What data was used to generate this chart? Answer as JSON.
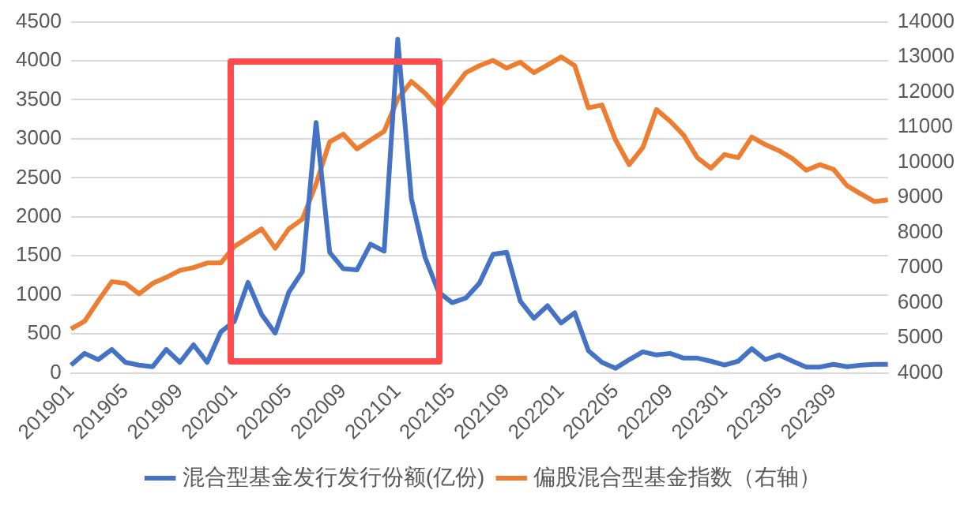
{
  "chart_data": {
    "type": "line",
    "categories": [
      "201901",
      null,
      null,
      null,
      "201905",
      null,
      null,
      null,
      "201909",
      null,
      null,
      null,
      "202001",
      null,
      null,
      null,
      "202005",
      null,
      null,
      null,
      "202009",
      null,
      null,
      null,
      "202101",
      null,
      null,
      null,
      "202105",
      null,
      null,
      null,
      "202109",
      null,
      null,
      null,
      "202201",
      null,
      null,
      null,
      "202205",
      null,
      null,
      null,
      "202209",
      null,
      null,
      null,
      "202301",
      null,
      null,
      null,
      "202305",
      null,
      null,
      null,
      "202309",
      null,
      null,
      null,
      null
    ],
    "series": [
      {
        "name": "混合型基金发行发行份额(亿份)",
        "color": "#4472c4",
        "values": [
          100,
          250,
          170,
          300,
          135,
          100,
          80,
          300,
          135,
          360,
          135,
          525,
          660,
          1160,
          750,
          510,
          1035,
          1300,
          3210,
          1545,
          1335,
          1320,
          1650,
          1560,
          4275,
          2235,
          1485,
          1035,
          900,
          960,
          1150,
          1520,
          1545,
          920,
          700,
          860,
          640,
          770,
          285,
          135,
          60,
          170,
          270,
          230,
          250,
          190,
          190,
          150,
          100,
          150,
          310,
          170,
          230,
          150,
          75,
          75,
          110,
          80,
          100,
          110,
          110
        ]
      },
      {
        "name": "偏股混合型基金指数（右轴）",
        "color": "#ed7d31",
        "axis": "y2",
        "values": [
          5250,
          5470,
          6050,
          6600,
          6550,
          6250,
          6550,
          6720,
          6920,
          7000,
          7130,
          7130,
          7600,
          7850,
          8100,
          7550,
          8100,
          8380,
          9380,
          10580,
          10800,
          10380,
          10630,
          10880,
          11800,
          12300,
          11970,
          11550,
          12050,
          12550,
          12750,
          12900,
          12680,
          12850,
          12550,
          12770,
          13000,
          12750,
          11550,
          11630,
          10630,
          9930,
          10420,
          11500,
          11170,
          10770,
          10130,
          9830,
          10220,
          10130,
          10720,
          10500,
          10330,
          10100,
          9770,
          9930,
          9800,
          9330,
          9100,
          8880,
          8930
        ]
      }
    ],
    "ylim": [
      0,
      4500
    ],
    "yticks": [
      0,
      500,
      1000,
      1500,
      2000,
      2500,
      3000,
      3500,
      4000,
      4500
    ],
    "y2lim": [
      4000,
      14000
    ],
    "y2ticks": [
      4000,
      5000,
      6000,
      7000,
      8000,
      9000,
      10000,
      11000,
      12000,
      13000,
      14000
    ],
    "grid": "y",
    "legend": "bottom",
    "marker": "none",
    "line_style": "solid"
  }
}
